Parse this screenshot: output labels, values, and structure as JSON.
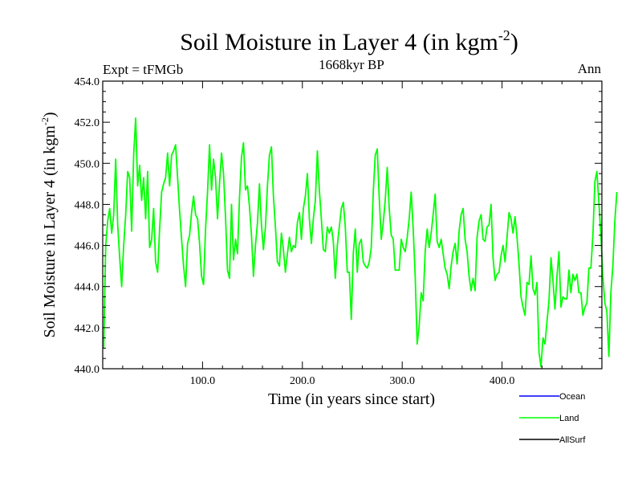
{
  "chart_data": {
    "type": "line",
    "title": "Soil Moisture in Layer 4 (in kgm",
    "title_sup": "-2",
    "title_close": ")",
    "subtitle_center": "1668kyr BP",
    "subtitle_left": "Expt = tFMGb",
    "subtitle_right": "Ann",
    "ylabel": "Soil Moisture in Layer 4 (in kgm",
    "ylabel_sup": "-2",
    "ylabel_close": ")",
    "xlabel": "Time (in years since start)",
    "xlim": [
      0,
      500
    ],
    "ylim": [
      440,
      454
    ],
    "x_ticks": [
      100,
      200,
      300,
      400
    ],
    "x_tick_labels": [
      "100.0",
      "200.0",
      "300.0",
      "400.0"
    ],
    "y_ticks": [
      440,
      442,
      444,
      446,
      448,
      450,
      452,
      454
    ],
    "y_tick_labels": [
      "440.0",
      "442.0",
      "444.0",
      "446.0",
      "448.0",
      "450.0",
      "452.0",
      "454.0"
    ],
    "legend": [
      {
        "name": "Ocean",
        "color": "#0000ff"
      },
      {
        "name": "Land",
        "color": "#00ff00"
      },
      {
        "name": "AllSurf",
        "color": "#000000"
      }
    ],
    "series": [
      {
        "name": "Land",
        "color": "#00ff00",
        "x_start": 1,
        "x_step": 2,
        "values": [
          441.0,
          446.0,
          447.2,
          447.8,
          446.6,
          447.5,
          450.2,
          447.0,
          445.4,
          444.0,
          446.0,
          447.5,
          449.6,
          449.3,
          446.7,
          450.4,
          452.2,
          448.9,
          449.9,
          448.2,
          449.3,
          447.3,
          449.6,
          445.9,
          446.3,
          447.8,
          445.2,
          444.7,
          446.8,
          448.6,
          449.0,
          449.3,
          450.5,
          448.9,
          450.4,
          450.6,
          450.9,
          449.3,
          447.7,
          446.3,
          445.0,
          444.0,
          446.1,
          446.5,
          447.6,
          448.4,
          447.5,
          447.3,
          446.1,
          444.5,
          444.1,
          446.8,
          448.6,
          450.9,
          448.7,
          450.2,
          449.3,
          447.3,
          449.0,
          450.5,
          449.5,
          447.4,
          444.8,
          444.4,
          448.0,
          445.3,
          446.3,
          445.6,
          448.3,
          450.3,
          451.0,
          448.7,
          448.9,
          447.9,
          446.5,
          444.5,
          446.0,
          447.1,
          449.0,
          447.0,
          445.8,
          446.9,
          448.9,
          450.4,
          450.8,
          448.4,
          446.9,
          445.2,
          445.0,
          446.6,
          445.8,
          444.7,
          445.6,
          446.4,
          445.7,
          446.0,
          445.9,
          447.1,
          447.6,
          446.3,
          447.8,
          448.4,
          449.5,
          447.3,
          446.1,
          447.3,
          448.2,
          450.6,
          448.7,
          447.3,
          445.8,
          445.7,
          446.9,
          446.6,
          446.9,
          446.2,
          444.4,
          446.0,
          446.9,
          447.8,
          448.1,
          446.9,
          444.7,
          444.7,
          442.4,
          445.6,
          446.8,
          444.7,
          446.1,
          446.3,
          445.2,
          445.0,
          444.9,
          445.2,
          445.9,
          448.6,
          450.4,
          450.7,
          448.3,
          446.3,
          447.1,
          448.2,
          449.8,
          447.8,
          446.5,
          446.3,
          444.8,
          444.8,
          444.8,
          446.3,
          445.9,
          445.7,
          446.4,
          447.3,
          448.6,
          446.8,
          444.5,
          441.2,
          442.1,
          443.7,
          443.3,
          445.7,
          446.8,
          445.9,
          446.6,
          447.5,
          448.5,
          446.2,
          445.9,
          446.3,
          445.6,
          444.9,
          444.6,
          443.9,
          445.0,
          445.7,
          446.1,
          445.1,
          446.7,
          447.5,
          447.8,
          446.3,
          445.7,
          444.5,
          443.8,
          444.4,
          443.8,
          446.4,
          447.2,
          447.5,
          446.3,
          446.2,
          446.9,
          447.0,
          448.0,
          445.4,
          444.3,
          444.6,
          444.7,
          445.5,
          446.0,
          445.2,
          446.4,
          447.6,
          447.3,
          446.6,
          447.4,
          446.4,
          445.1,
          443.5,
          443.0,
          442.6,
          444.2,
          444.1,
          445.5,
          443.9,
          443.6,
          444.2,
          440.8,
          440.1,
          441.5,
          441.2,
          442.3,
          443.3,
          445.4,
          444.3,
          442.9,
          444.5,
          445.7,
          443.0,
          443.5,
          443.4,
          443.4,
          444.8,
          443.7,
          444.6,
          444.3,
          444.6,
          443.7,
          443.7,
          442.6,
          443.0,
          443.2,
          444.9,
          444.9,
          446.5,
          449.1,
          449.6,
          448.1,
          446.5,
          444.5,
          443.2,
          442.8,
          440.6,
          443.7,
          445.0,
          447.2,
          448.6
        ]
      }
    ]
  }
}
